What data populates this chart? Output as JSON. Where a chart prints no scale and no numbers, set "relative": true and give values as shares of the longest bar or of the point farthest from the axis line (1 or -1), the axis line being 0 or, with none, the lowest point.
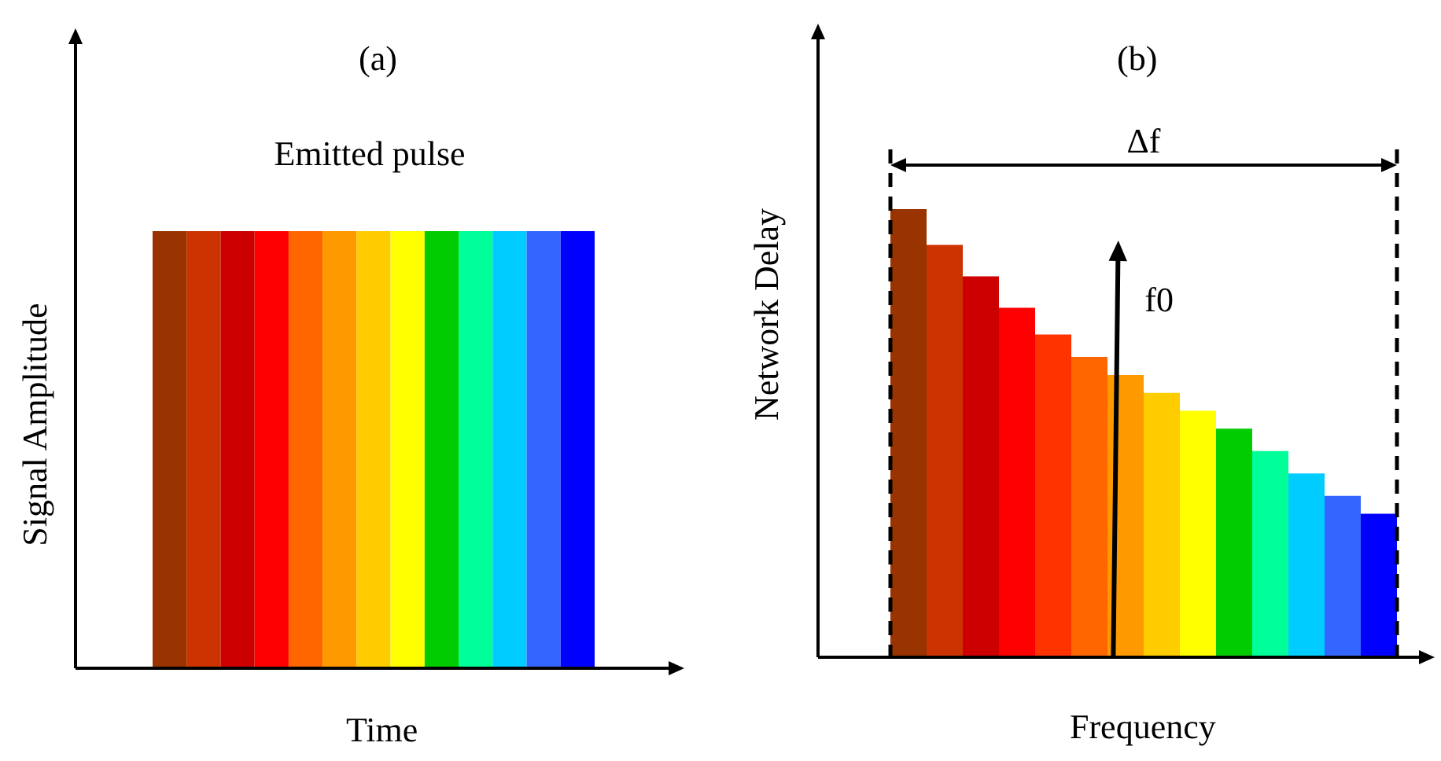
{
  "chart_data": [
    {
      "type": "bar",
      "title": "(a)",
      "xlabel": "Time",
      "ylabel": "Signal Amplitude",
      "annotations": [
        "Emitted pulse"
      ],
      "relative": true,
      "categories": [
        null,
        null,
        null,
        null,
        null,
        null,
        null,
        null,
        null,
        null,
        null,
        null,
        null
      ],
      "values": [
        1,
        1,
        1,
        1,
        1,
        1,
        1,
        1,
        1,
        1,
        1,
        1,
        1
      ],
      "colors": [
        "#993300",
        "#cc3300",
        "#cc0000",
        "#ff0000",
        "#ff6600",
        "#ff9900",
        "#ffcc00",
        "#ffff00",
        "#00cc00",
        "#00ff99",
        "#00ccff",
        "#3366ff",
        "#0000ff"
      ]
    },
    {
      "type": "bar",
      "title": "(b)",
      "xlabel": "Frequency",
      "ylabel": "Network Delay",
      "annotations": [
        "Δf",
        "f0"
      ],
      "relative": true,
      "categories": [
        null,
        null,
        null,
        null,
        null,
        null,
        null,
        null,
        null,
        null,
        null,
        null,
        null,
        null
      ],
      "values": [
        1,
        0.92,
        0.85,
        0.78,
        0.72,
        0.67,
        0.63,
        0.59,
        0.55,
        0.51,
        0.46,
        0.41,
        0.36,
        0.32
      ],
      "colors": [
        "#993300",
        "#cc3300",
        "#cc0000",
        "#ff0000",
        "#ff3300",
        "#ff6600",
        "#ff9900",
        "#ffcc00",
        "#ffff00",
        "#00cc00",
        "#00ff99",
        "#00ccff",
        "#3366ff",
        "#0000ff"
      ]
    }
  ]
}
